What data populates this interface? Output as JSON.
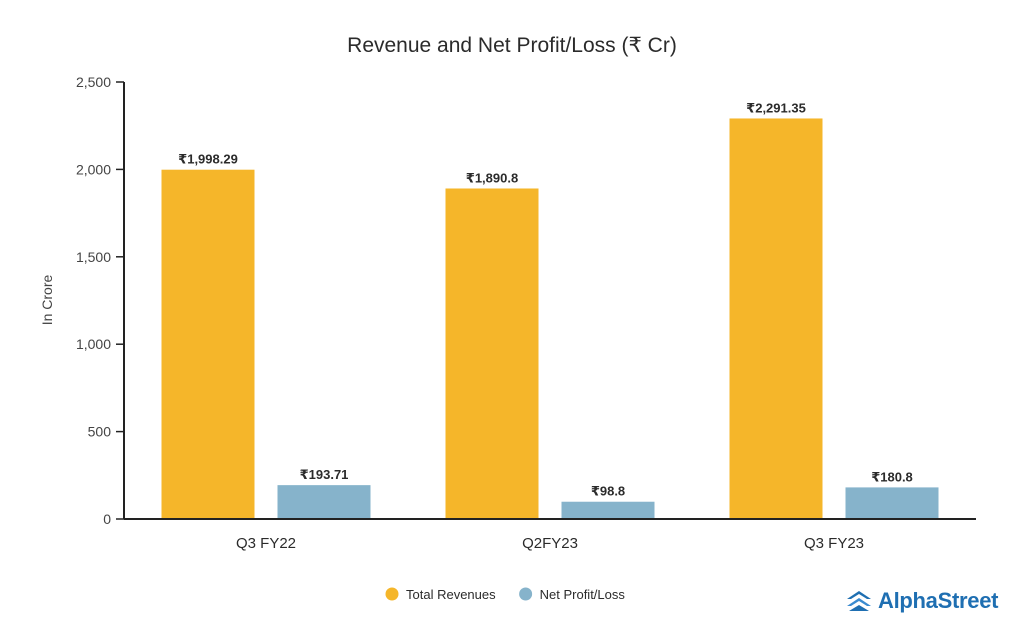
{
  "chart_data": {
    "type": "bar",
    "title": "Revenue and Net Profit/Loss (₹ Cr)",
    "xlabel": "",
    "ylabel": "In Crore",
    "ylim": [
      0,
      2500
    ],
    "yticks": [
      0,
      500,
      1000,
      1500,
      2000,
      2500
    ],
    "ytick_labels": [
      "0",
      "500",
      "1,000",
      "1,500",
      "2,000",
      "2,500"
    ],
    "categories": [
      "Q3 FY22",
      "Q2FY23",
      "Q3 FY23"
    ],
    "series": [
      {
        "name": "Total Revenues",
        "color": "#F5B62A",
        "values": [
          1998.29,
          1890.8,
          2291.35
        ],
        "labels": [
          "₹1,998.29",
          "₹1,890.8",
          "₹2,291.35"
        ]
      },
      {
        "name": "Net Profit/Loss",
        "color": "#86B3CB",
        "values": [
          193.71,
          98.8,
          180.8
        ],
        "labels": [
          "₹193.71",
          "₹98.8",
          "₹180.8"
        ]
      }
    ],
    "legend_position": "bottom-center",
    "grid": false
  },
  "brand": {
    "name": "AlphaStreet",
    "icon": "alphastreet-logo-icon",
    "color": "#1F6FB2"
  }
}
